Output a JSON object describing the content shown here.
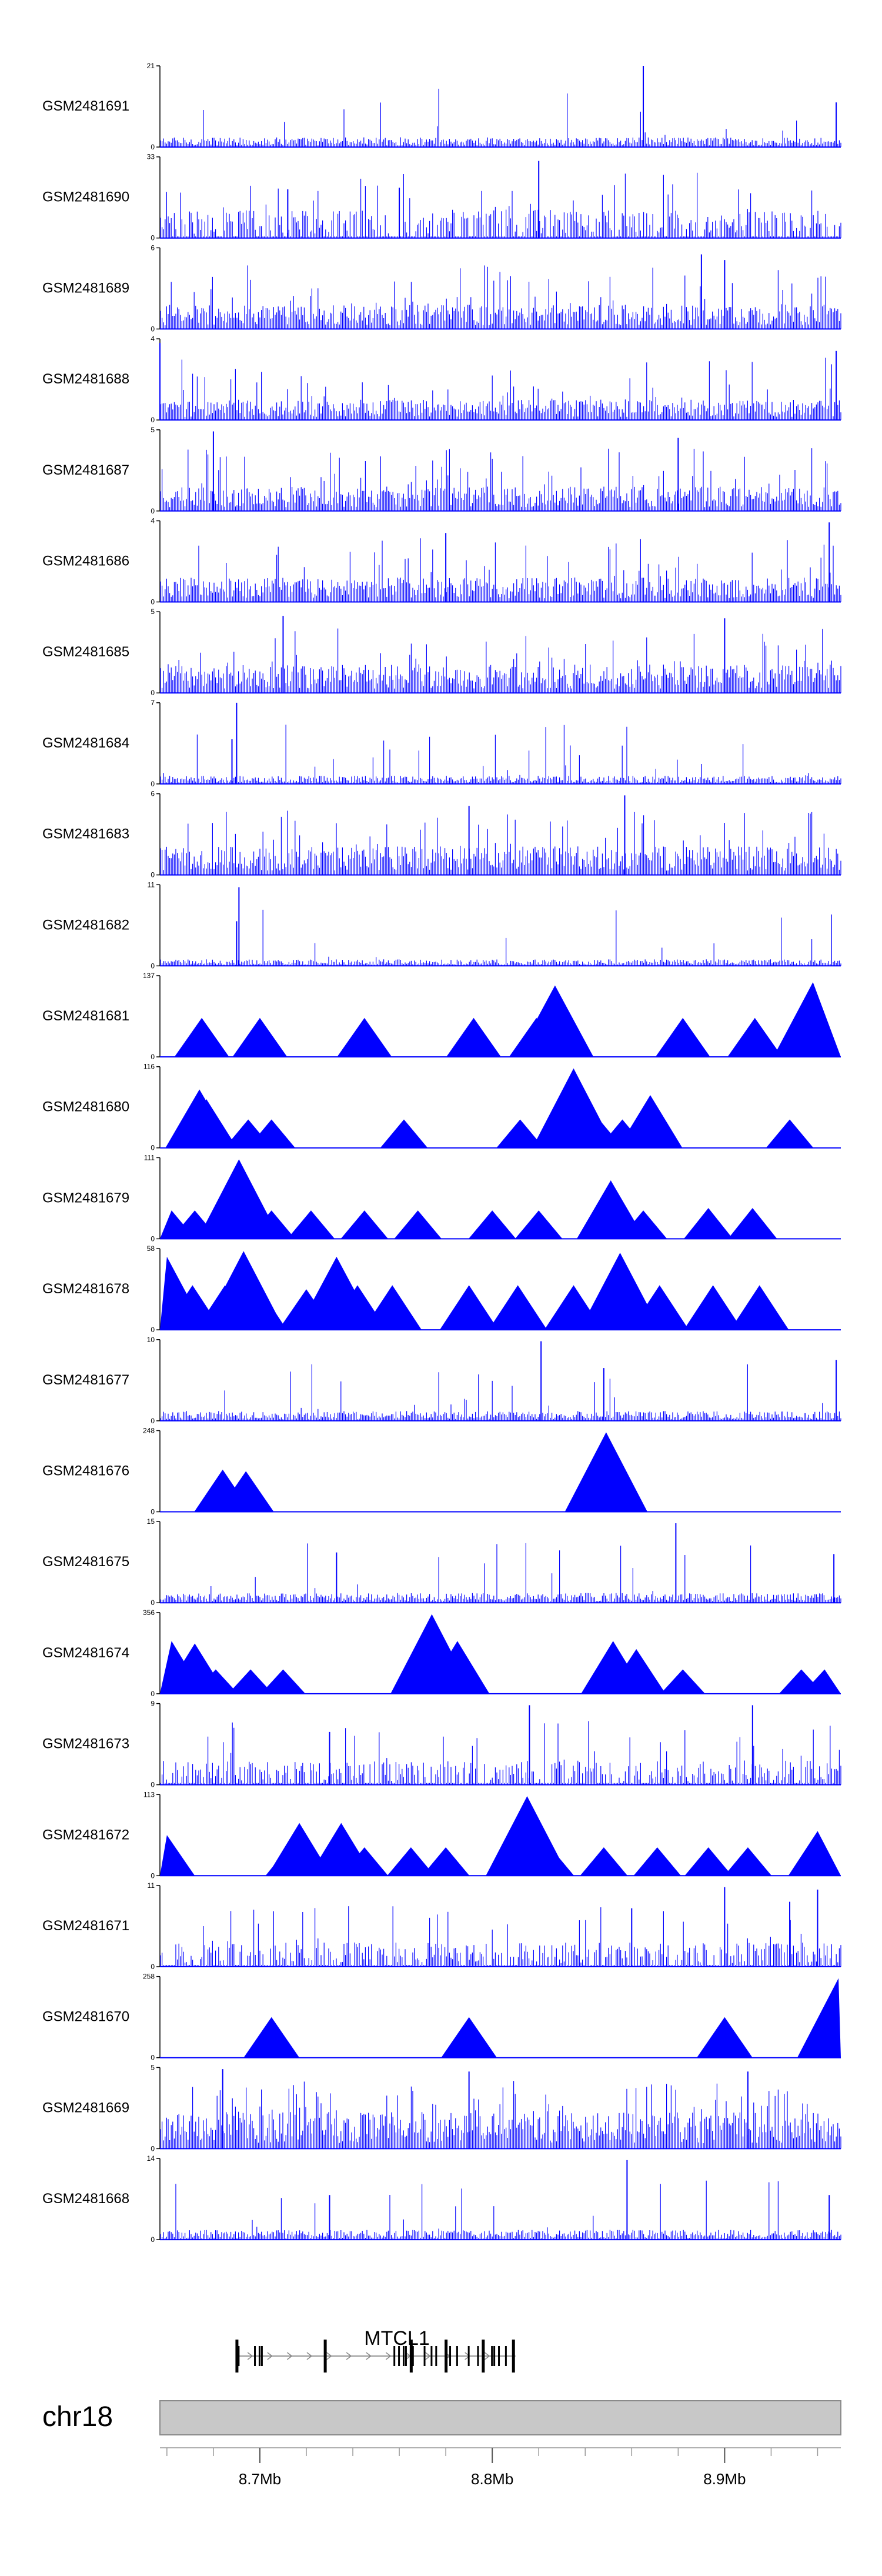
{
  "chart_data": {
    "type": "area",
    "title": "",
    "color": "#0000ff",
    "xlim": [
      8.657,
      8.95
    ],
    "x_unit": "Mb",
    "tracks": [
      {
        "name": "GSM2481691",
        "ymax": 21,
        "pattern": "noise",
        "base": 0.12,
        "spike_rate": 0.03,
        "peaks": [
          [
            8.865,
            1.0
          ],
          [
            8.948,
            0.55
          ]
        ]
      },
      {
        "name": "GSM2481690",
        "ymax": 33,
        "pattern": "sparse",
        "base": 0.35,
        "spike_rate": 0.08,
        "peaks": [
          [
            8.82,
            0.95
          ],
          [
            8.76,
            0.62
          ],
          [
            8.712,
            0.6
          ]
        ]
      },
      {
        "name": "GSM2481689",
        "ymax": 6,
        "pattern": "noise",
        "base": 0.3,
        "spike_rate": 0.12,
        "peaks": [
          [
            8.89,
            0.92
          ],
          [
            8.9,
            0.85
          ]
        ]
      },
      {
        "name": "GSM2481688",
        "ymax": 4,
        "pattern": "noise",
        "base": 0.25,
        "spike_rate": 0.1,
        "peaks": [
          [
            8.657,
            0.95
          ],
          [
            8.948,
            0.85
          ]
        ]
      },
      {
        "name": "GSM2481687",
        "ymax": 5,
        "pattern": "noise",
        "base": 0.3,
        "spike_rate": 0.12,
        "peaks": [
          [
            8.68,
            0.98
          ],
          [
            8.88,
            0.9
          ]
        ]
      },
      {
        "name": "GSM2481686",
        "ymax": 4,
        "pattern": "noise",
        "base": 0.3,
        "spike_rate": 0.12,
        "peaks": [
          [
            8.945,
            0.98
          ],
          [
            8.78,
            0.85
          ]
        ]
      },
      {
        "name": "GSM2481685",
        "ymax": 5,
        "pattern": "noise",
        "base": 0.35,
        "spike_rate": 0.12,
        "peaks": [
          [
            8.71,
            0.95
          ],
          [
            8.9,
            0.92
          ]
        ]
      },
      {
        "name": "GSM2481684",
        "ymax": 7,
        "pattern": "noise",
        "base": 0.1,
        "spike_rate": 0.05,
        "peaks": [
          [
            8.69,
            1.0
          ],
          [
            8.688,
            0.55
          ]
        ]
      },
      {
        "name": "GSM2481683",
        "ymax": 6,
        "pattern": "noise",
        "base": 0.35,
        "spike_rate": 0.1,
        "peaks": [
          [
            8.857,
            0.98
          ],
          [
            8.79,
            0.85
          ]
        ]
      },
      {
        "name": "GSM2481682",
        "ymax": 11,
        "pattern": "noise",
        "base": 0.08,
        "spike_rate": 0.03,
        "peaks": [
          [
            8.691,
            0.97
          ],
          [
            8.69,
            0.55
          ]
        ]
      },
      {
        "name": "GSM2481681",
        "ymax": 137,
        "pattern": "tri",
        "base": 0,
        "spike_rate": 0,
        "peaks": [
          [
            8.675,
            0.48
          ],
          [
            8.7,
            0.48
          ],
          [
            8.745,
            0.48
          ],
          [
            8.792,
            0.48
          ],
          [
            8.819,
            0.48
          ],
          [
            8.882,
            0.48
          ],
          [
            8.913,
            0.48
          ],
          [
            8.933,
            0.48
          ],
          [
            8.827,
            0.88
          ],
          [
            8.938,
            0.92
          ]
        ]
      },
      {
        "name": "GSM2481680",
        "ymax": 116,
        "pattern": "tri",
        "base": 0,
        "spike_rate": 0,
        "peaks": [
          [
            8.674,
            0.72
          ],
          [
            8.677,
            0.6
          ],
          [
            8.695,
            0.35
          ],
          [
            8.705,
            0.35
          ],
          [
            8.762,
            0.35
          ],
          [
            8.812,
            0.35
          ],
          [
            8.836,
            0.35
          ],
          [
            8.846,
            0.35
          ],
          [
            8.856,
            0.35
          ],
          [
            8.868,
            0.65
          ],
          [
            8.928,
            0.35
          ],
          [
            8.835,
            0.98
          ]
        ]
      },
      {
        "name": "GSM2481679",
        "ymax": 111,
        "pattern": "tri",
        "base": 0,
        "spike_rate": 0,
        "peaks": [
          [
            8.662,
            0.35
          ],
          [
            8.672,
            0.35
          ],
          [
            8.686,
            0.4
          ],
          [
            8.705,
            0.35
          ],
          [
            8.722,
            0.35
          ],
          [
            8.745,
            0.35
          ],
          [
            8.768,
            0.35
          ],
          [
            8.8,
            0.35
          ],
          [
            8.82,
            0.35
          ],
          [
            8.851,
            0.72
          ],
          [
            8.865,
            0.35
          ],
          [
            8.893,
            0.38
          ],
          [
            8.912,
            0.38
          ],
          [
            8.691,
            0.98
          ]
        ]
      },
      {
        "name": "GSM2481678",
        "ymax": 58,
        "pattern": "tri",
        "base": 0,
        "spike_rate": 0,
        "peaks": [
          [
            8.66,
            0.9
          ],
          [
            8.671,
            0.55
          ],
          [
            8.685,
            0.55
          ],
          [
            8.699,
            0.55
          ],
          [
            8.72,
            0.5
          ],
          [
            8.742,
            0.55
          ],
          [
            8.757,
            0.55
          ],
          [
            8.79,
            0.55
          ],
          [
            8.811,
            0.55
          ],
          [
            8.835,
            0.55
          ],
          [
            8.855,
            0.95
          ],
          [
            8.872,
            0.55
          ],
          [
            8.895,
            0.55
          ],
          [
            8.915,
            0.55
          ],
          [
            8.693,
            0.97
          ],
          [
            8.733,
            0.9
          ]
        ]
      },
      {
        "name": "GSM2481677",
        "ymax": 10,
        "pattern": "noise",
        "base": 0.12,
        "spike_rate": 0.04,
        "peaks": [
          [
            8.821,
            0.98
          ],
          [
            8.948,
            0.75
          ],
          [
            8.848,
            0.65
          ]
        ]
      },
      {
        "name": "GSM2481676",
        "ymax": 248,
        "pattern": "tri",
        "base": 0,
        "spike_rate": 0,
        "peaks": [
          [
            8.684,
            0.52
          ],
          [
            8.694,
            0.5
          ],
          [
            8.848,
            0.52
          ],
          [
            8.849,
            0.98
          ]
        ]
      },
      {
        "name": "GSM2481675",
        "ymax": 15,
        "pattern": "noise",
        "base": 0.12,
        "spike_rate": 0.06,
        "peaks": [
          [
            8.879,
            0.98
          ],
          [
            8.947,
            0.6
          ],
          [
            8.733,
            0.62
          ]
        ]
      },
      {
        "name": "GSM2481674",
        "ymax": 356,
        "pattern": "tri",
        "base": 0,
        "spike_rate": 0,
        "peaks": [
          [
            8.662,
            0.65
          ],
          [
            8.672,
            0.62
          ],
          [
            8.681,
            0.3
          ],
          [
            8.696,
            0.3
          ],
          [
            8.71,
            0.3
          ],
          [
            8.773,
            0.3
          ],
          [
            8.785,
            0.65
          ],
          [
            8.852,
            0.65
          ],
          [
            8.862,
            0.55
          ],
          [
            8.882,
            0.3
          ],
          [
            8.933,
            0.3
          ],
          [
            8.943,
            0.3
          ],
          [
            8.774,
            0.98
          ],
          [
            8.775,
            0.7
          ]
        ]
      },
      {
        "name": "GSM2481673",
        "ymax": 9,
        "pattern": "sparse",
        "base": 0.3,
        "spike_rate": 0.08,
        "peaks": [
          [
            8.816,
            0.98
          ],
          [
            8.912,
            0.98
          ],
          [
            8.73,
            0.65
          ]
        ]
      },
      {
        "name": "GSM2481672",
        "ymax": 113,
        "pattern": "tri",
        "base": 0,
        "spike_rate": 0,
        "peaks": [
          [
            8.66,
            0.5
          ],
          [
            8.713,
            0.38
          ],
          [
            8.745,
            0.35
          ],
          [
            8.765,
            0.35
          ],
          [
            8.78,
            0.35
          ],
          [
            8.825,
            0.35
          ],
          [
            8.848,
            0.35
          ],
          [
            8.871,
            0.35
          ],
          [
            8.893,
            0.35
          ],
          [
            8.91,
            0.35
          ],
          [
            8.94,
            0.55
          ],
          [
            8.815,
            0.98
          ],
          [
            8.717,
            0.65
          ],
          [
            8.735,
            0.65
          ]
        ]
      },
      {
        "name": "GSM2481671",
        "ymax": 11,
        "pattern": "sparse",
        "base": 0.3,
        "spike_rate": 0.08,
        "peaks": [
          [
            8.9,
            0.98
          ],
          [
            8.94,
            0.95
          ],
          [
            8.928,
            0.8
          ],
          [
            8.86,
            0.72
          ]
        ]
      },
      {
        "name": "GSM2481670",
        "ymax": 258,
        "pattern": "tri",
        "base": 0,
        "spike_rate": 0,
        "peaks": [
          [
            8.705,
            0.5
          ],
          [
            8.79,
            0.5
          ],
          [
            8.9,
            0.5
          ],
          [
            8.949,
            0.98
          ]
        ]
      },
      {
        "name": "GSM2481669",
        "ymax": 5,
        "pattern": "noise",
        "base": 0.45,
        "spike_rate": 0.15,
        "peaks": [
          [
            8.684,
            0.98
          ],
          [
            8.79,
            0.95
          ],
          [
            8.91,
            0.95
          ]
        ]
      },
      {
        "name": "GSM2481668",
        "ymax": 14,
        "pattern": "noise",
        "base": 0.12,
        "spike_rate": 0.06,
        "peaks": [
          [
            8.858,
            0.98
          ],
          [
            8.73,
            0.55
          ],
          [
            8.945,
            0.55
          ]
        ]
      }
    ],
    "gene": {
      "name": "MTCL1",
      "start": 8.69,
      "end": 8.81,
      "exons": [
        8.69,
        8.691,
        8.698,
        8.7,
        8.701,
        8.728,
        8.758,
        8.76,
        8.762,
        8.763,
        8.765,
        8.766,
        8.771,
        8.774,
        8.776,
        8.78,
        8.782,
        8.785,
        8.79,
        8.794,
        8.796,
        8.8,
        8.801,
        8.803,
        8.806,
        8.809
      ]
    },
    "chromosome": {
      "name": "chr18",
      "ticks": [
        8.7,
        8.8,
        8.9
      ],
      "tick_labels": [
        "8.7Mb",
        "8.8Mb",
        "8.9Mb"
      ]
    }
  }
}
